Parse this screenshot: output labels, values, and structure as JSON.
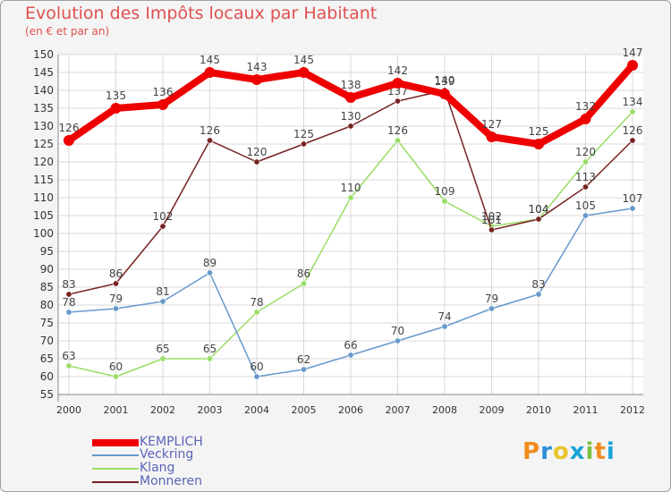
{
  "chart_data": {
    "type": "line",
    "title": "Evolution des Impôts locaux par Habitant",
    "subtitle": "(en € et par an)",
    "xlabel": "",
    "ylabel": "",
    "x": [
      "2000",
      "2001",
      "2002",
      "2003",
      "2004",
      "2005",
      "2006",
      "2007",
      "2008",
      "2009",
      "2010",
      "2011",
      "2012"
    ],
    "ylim": [
      55,
      150
    ],
    "yticks": [
      55,
      60,
      65,
      70,
      75,
      80,
      85,
      90,
      95,
      100,
      105,
      110,
      115,
      120,
      125,
      130,
      135,
      140,
      145,
      150
    ],
    "grid": true,
    "legend_position": "bottom-left",
    "series": [
      {
        "name": "KEMPLICH",
        "color": "#ee0000",
        "values": [
          126,
          135,
          136,
          145,
          143,
          145,
          138,
          142,
          139,
          127,
          125,
          132,
          147
        ]
      },
      {
        "name": "Veckring",
        "color": "#6699cc",
        "values": [
          78,
          79,
          81,
          89,
          60,
          62,
          66,
          70,
          74,
          79,
          83,
          105,
          107
        ]
      },
      {
        "name": "Klang",
        "color": "#99dd66",
        "values": [
          63,
          60,
          65,
          65,
          78,
          86,
          110,
          126,
          109,
          102,
          104,
          120,
          134
        ]
      },
      {
        "name": "Monneren",
        "color": "#772222",
        "values": [
          83,
          86,
          102,
          126,
          120,
          125,
          130,
          137,
          140,
          101,
          104,
          113,
          126
        ]
      }
    ]
  },
  "logo": {
    "text": "Proxiti",
    "colors": [
      "#f08c1e",
      "#2e8fd6",
      "#e9c52c",
      "#1aa3d9",
      "#7cc242",
      "#f08c1e",
      "#1aa3d9"
    ]
  }
}
